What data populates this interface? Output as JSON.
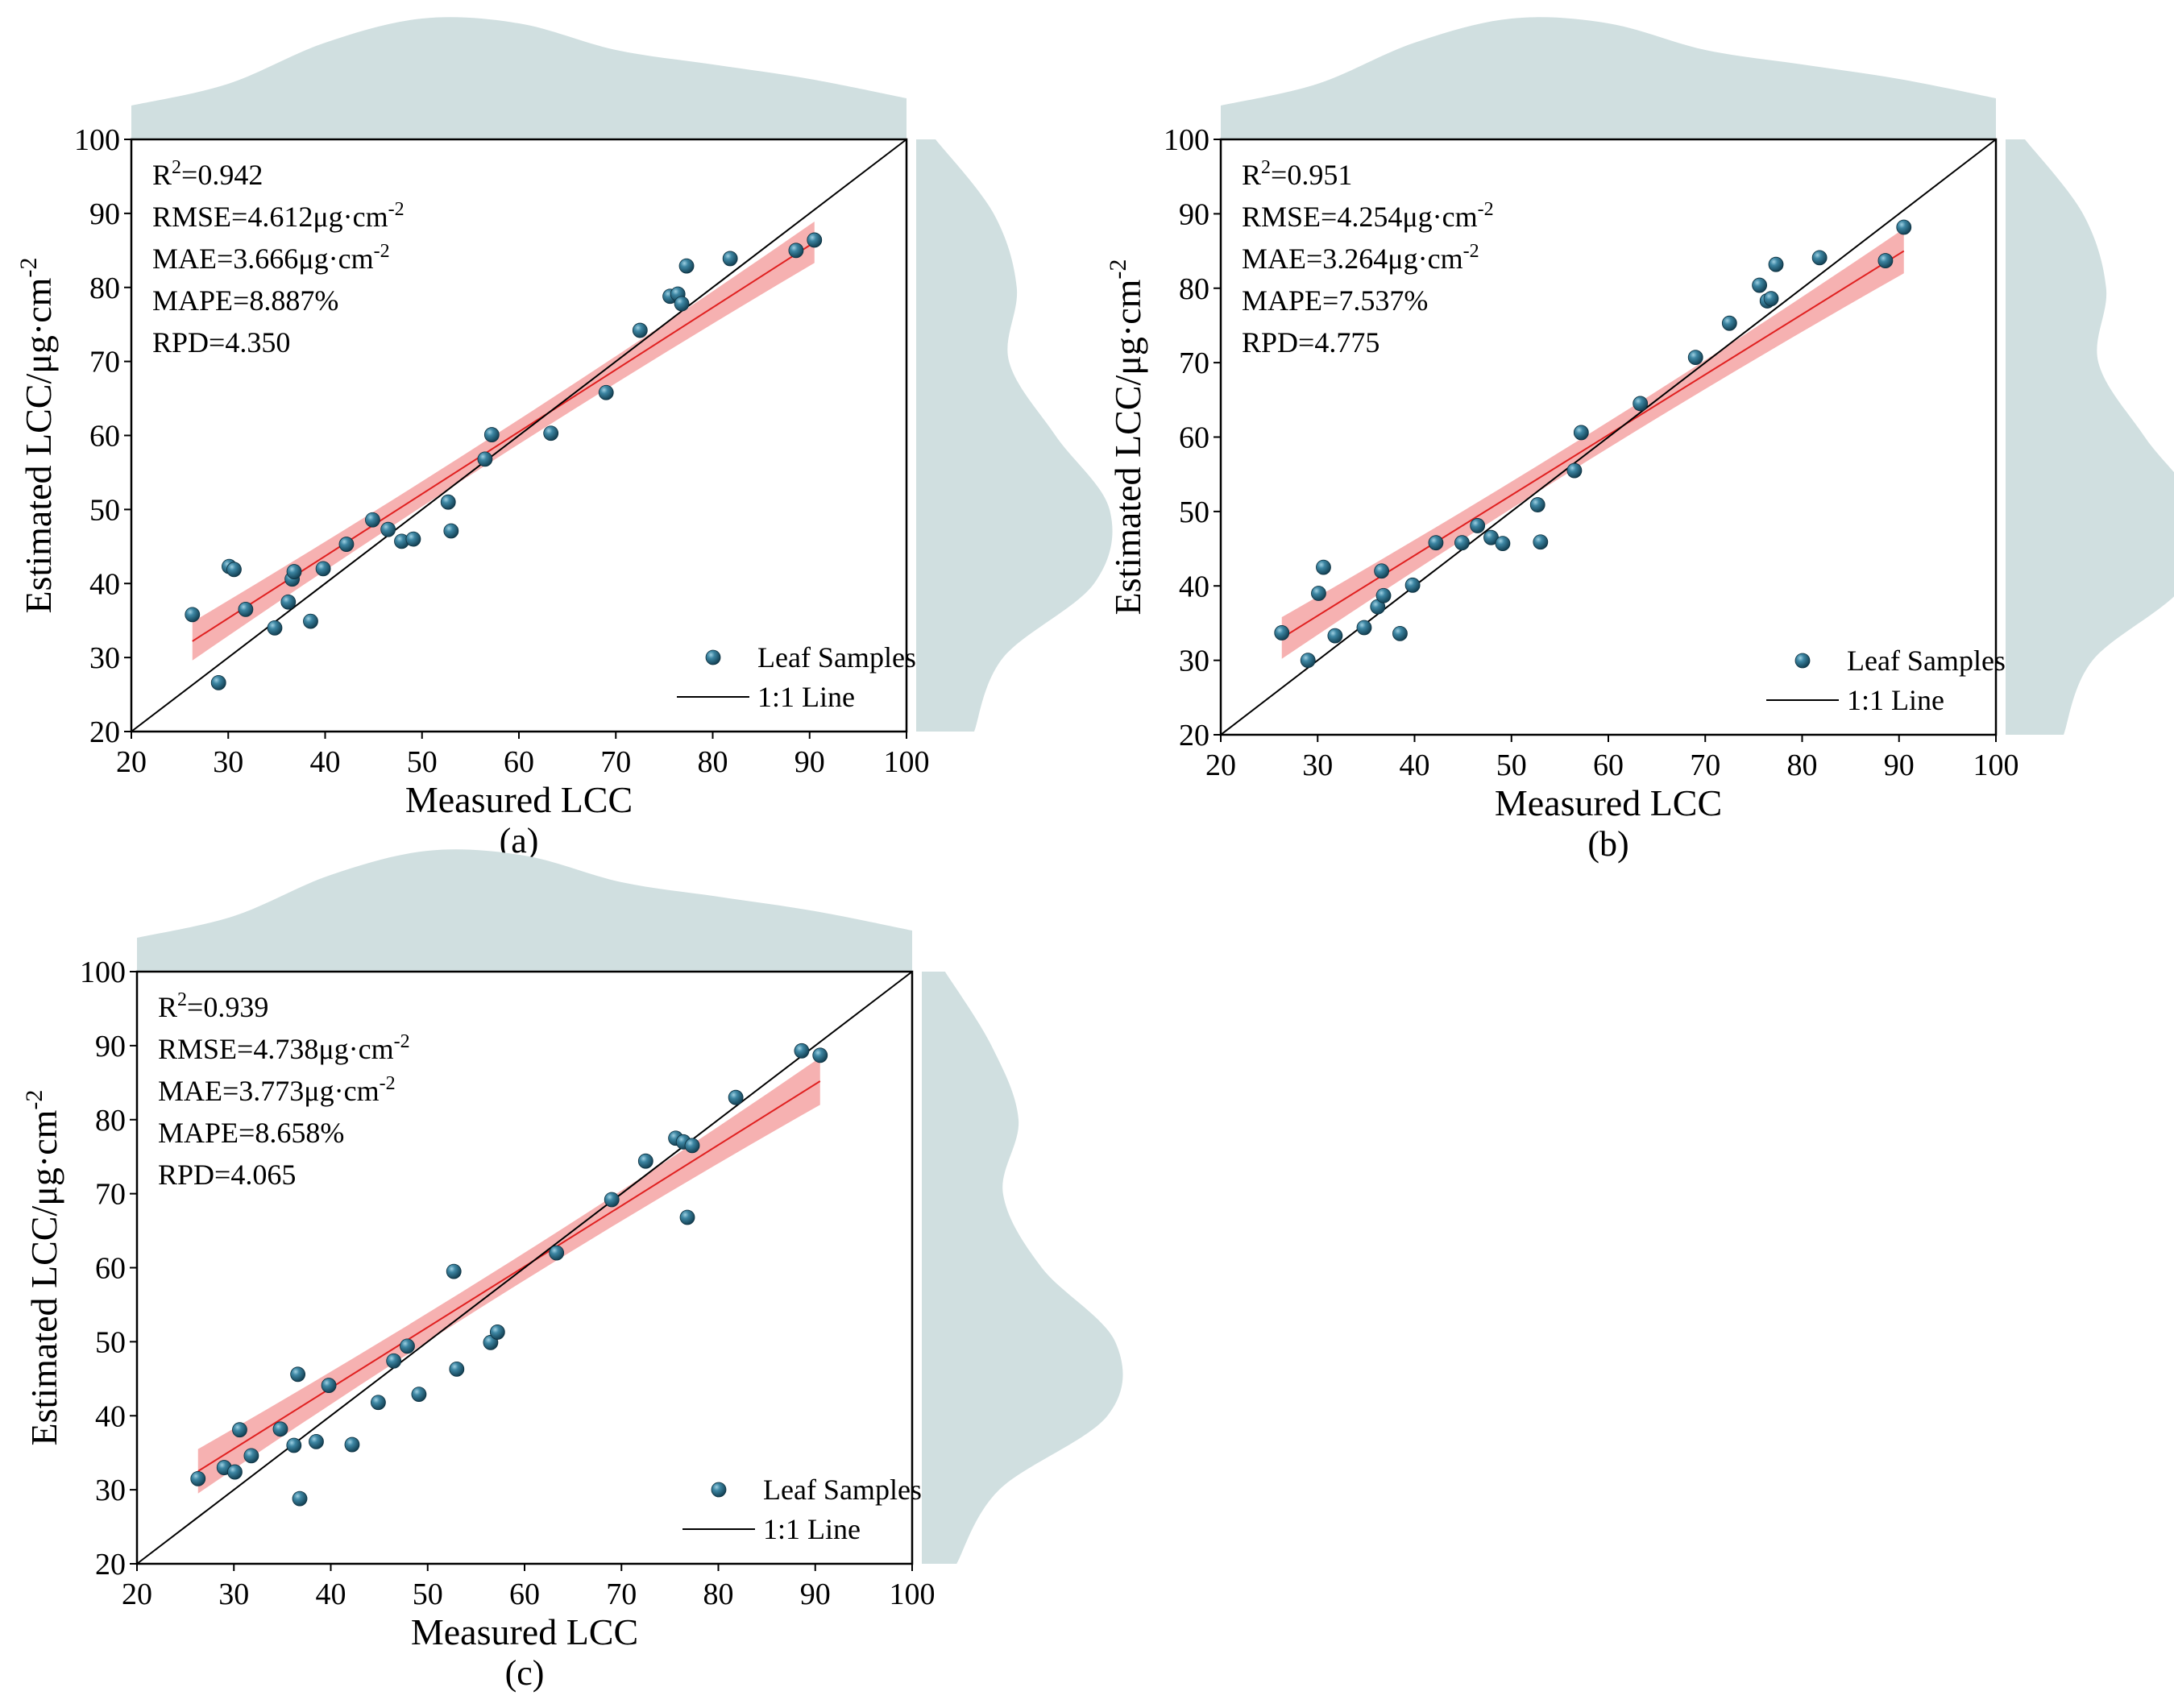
{
  "colors": {
    "density": "#d0dfe0",
    "band": "#f5a3a3",
    "fit": "#e02020",
    "identity": "#000000",
    "point": "#1f5f7a",
    "point_highlight": "#8fc2d6"
  },
  "chart_data": [
    {
      "type": "scatter",
      "panel_label": "(a)",
      "xlabel": "Measured LCC",
      "ylabel": "Estimated LCC/μg·cm",
      "ylabel_sup": "-2",
      "xlim": [
        20,
        100
      ],
      "ylim": [
        20,
        100
      ],
      "xticks": [
        "20",
        "30",
        "40",
        "50",
        "60",
        "70",
        "80",
        "90",
        "100"
      ],
      "yticks": [
        "20",
        "30",
        "40",
        "50",
        "60",
        "70",
        "80",
        "90",
        "100"
      ],
      "legend": {
        "points": "Leaf Samples",
        "line": "1:1 Line"
      },
      "stats": {
        "r2_prefix": "R",
        "r2_sup": "2",
        "r2_value": "=0.942",
        "rmse": "RMSE=4.612μg·cm",
        "rmse_sup": "-2",
        "mae": "MAE=3.666μg·cm",
        "mae_sup": "-2",
        "mape": "MAPE=8.887%",
        "rpd": "RPD=4.350"
      },
      "fit": {
        "x": [
          26.3,
          90.5
        ],
        "y": [
          32.2,
          86.1
        ],
        "ci_start": 2.6,
        "ci_end": 2.8
      },
      "x": [
        26.3,
        29.0,
        30.1,
        30.6,
        31.8,
        34.8,
        36.2,
        36.6,
        36.8,
        38.5,
        39.8,
        42.2,
        44.9,
        46.5,
        47.9,
        49.1,
        52.7,
        53.0,
        56.5,
        57.2,
        63.3,
        69.0,
        72.5,
        75.6,
        76.4,
        76.8,
        77.3,
        81.8,
        88.6,
        90.5
      ],
      "y": [
        35.8,
        26.6,
        42.3,
        41.9,
        36.5,
        34.0,
        37.5,
        40.6,
        41.6,
        34.9,
        42.0,
        45.3,
        48.6,
        47.3,
        45.7,
        46.0,
        51.0,
        47.1,
        56.8,
        60.1,
        60.3,
        65.8,
        74.2,
        78.8,
        79.1,
        77.8,
        82.9,
        83.9,
        85.0,
        86.4
      ],
      "density_x": [
        20,
        30,
        40,
        50,
        60,
        70,
        80,
        90,
        100
      ],
      "density_x_rel": [
        0.28,
        0.46,
        0.8,
        1.0,
        0.96,
        0.74,
        0.62,
        0.5,
        0.34
      ],
      "density_y": [
        20,
        30,
        40,
        50,
        60,
        70,
        80,
        90,
        100
      ],
      "density_y_rel": [
        0.3,
        0.45,
        0.92,
        1.0,
        0.72,
        0.48,
        0.52,
        0.4,
        0.1
      ]
    },
    {
      "type": "scatter",
      "panel_label": "(b)",
      "xlabel": "Measured LCC",
      "ylabel": "Estimated LCC/μg·cm",
      "ylabel_sup": "-2",
      "xlim": [
        20,
        100
      ],
      "ylim": [
        20,
        100
      ],
      "xticks": [
        "20",
        "30",
        "40",
        "50",
        "60",
        "70",
        "80",
        "90",
        "100"
      ],
      "yticks": [
        "20",
        "30",
        "40",
        "50",
        "60",
        "70",
        "80",
        "90",
        "100"
      ],
      "legend": {
        "points": "Leaf Samples",
        "line": "1:1 Line"
      },
      "stats": {
        "r2_prefix": "R",
        "r2_sup": "2",
        "r2_value": "=0.951",
        "rmse": "RMSE=4.254μg·cm",
        "rmse_sup": "-2",
        "mae": "MAE=3.264μg·cm",
        "mae_sup": "-2",
        "mape": "MAPE=7.537%",
        "rpd": "RPD=4.775"
      },
      "fit": {
        "x": [
          26.3,
          90.5
        ],
        "y": [
          33.0,
          85.0
        ],
        "ci_start": 2.8,
        "ci_end": 3.0
      },
      "x": [
        26.3,
        29.0,
        30.1,
        30.6,
        31.8,
        34.8,
        36.2,
        36.6,
        36.8,
        38.5,
        39.8,
        42.2,
        44.9,
        46.5,
        47.9,
        49.1,
        52.7,
        53.0,
        56.5,
        57.2,
        63.3,
        69.0,
        72.5,
        75.6,
        76.4,
        76.8,
        77.3,
        81.8,
        88.6,
        90.5
      ],
      "y": [
        33.7,
        30.0,
        39.0,
        42.5,
        33.3,
        34.4,
        37.2,
        42.0,
        38.7,
        33.6,
        40.1,
        45.8,
        45.8,
        48.1,
        46.5,
        45.7,
        50.9,
        45.9,
        55.5,
        60.6,
        64.5,
        70.7,
        75.3,
        80.4,
        78.3,
        78.6,
        83.2,
        84.1,
        83.7,
        88.2
      ],
      "density_x": [
        20,
        30,
        40,
        50,
        60,
        70,
        80,
        90,
        100
      ],
      "density_x_rel": [
        0.28,
        0.46,
        0.8,
        1.0,
        0.96,
        0.74,
        0.62,
        0.5,
        0.34
      ],
      "density_y": [
        20,
        30,
        40,
        50,
        60,
        70,
        80,
        90,
        100
      ],
      "density_y_rel": [
        0.3,
        0.45,
        0.92,
        1.0,
        0.72,
        0.48,
        0.52,
        0.4,
        0.1
      ]
    },
    {
      "type": "scatter",
      "panel_label": "(c)",
      "xlabel": "Measured LCC",
      "ylabel": "Estimated LCC/μg·cm",
      "ylabel_sup": "-2",
      "xlim": [
        20,
        100
      ],
      "ylim": [
        20,
        100
      ],
      "xticks": [
        "20",
        "30",
        "40",
        "50",
        "60",
        "70",
        "80",
        "90",
        "100"
      ],
      "yticks": [
        "20",
        "30",
        "40",
        "50",
        "60",
        "70",
        "80",
        "90",
        "100"
      ],
      "legend": {
        "points": "Leaf Samples",
        "line": "1:1 Line"
      },
      "stats": {
        "r2_prefix": "R",
        "r2_sup": "2",
        "r2_value": "=0.939",
        "rmse": "RMSE=4.738μg·cm",
        "rmse_sup": "-2",
        "mae": "MAE=3.773μg·cm",
        "mae_sup": "-2",
        "mape": "MAPE=8.658%",
        "rpd": "RPD=4.065"
      },
      "fit": {
        "x": [
          26.3,
          90.5
        ],
        "y": [
          32.5,
          85.2
        ],
        "ci_start": 3.0,
        "ci_end": 3.2
      },
      "x": [
        26.3,
        29.0,
        30.1,
        30.6,
        31.8,
        34.8,
        36.2,
        36.6,
        36.8,
        38.5,
        39.8,
        42.2,
        44.9,
        46.5,
        47.9,
        49.1,
        52.7,
        53.0,
        56.5,
        57.2,
        63.3,
        69.0,
        72.5,
        75.6,
        76.4,
        76.8,
        77.3,
        81.8,
        88.6,
        90.5
      ],
      "y": [
        31.5,
        33.0,
        32.4,
        38.1,
        34.6,
        38.2,
        36.0,
        45.6,
        28.8,
        36.5,
        44.1,
        36.1,
        41.8,
        47.4,
        49.4,
        42.9,
        59.5,
        46.3,
        49.9,
        51.3,
        62.0,
        69.2,
        74.4,
        77.5,
        77.0,
        66.8,
        76.5,
        83.0,
        89.3,
        88.7
      ],
      "density_x": [
        20,
        30,
        40,
        50,
        60,
        70,
        80,
        90,
        100
      ],
      "density_x_rel": [
        0.28,
        0.46,
        0.8,
        1.0,
        0.96,
        0.74,
        0.62,
        0.5,
        0.34
      ],
      "density_y": [
        20,
        30,
        40,
        50,
        60,
        70,
        80,
        90,
        100
      ],
      "density_y_rel": [
        0.18,
        0.4,
        0.96,
        1.0,
        0.62,
        0.42,
        0.5,
        0.36,
        0.12
      ]
    }
  ]
}
